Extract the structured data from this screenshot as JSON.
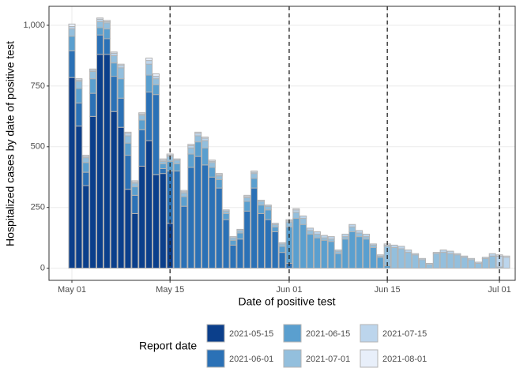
{
  "chart_data": {
    "type": "stacked-bar",
    "xlabel": "Date of positive test",
    "ylabel": "Hospitalized cases by date of positive test",
    "categories": [
      "May 01",
      "May 02",
      "May 03",
      "May 04",
      "May 05",
      "May 06",
      "May 07",
      "May 08",
      "May 09",
      "May 10",
      "May 11",
      "May 12",
      "May 13",
      "May 14",
      "May 15",
      "May 16",
      "May 17",
      "May 18",
      "May 19",
      "May 20",
      "May 21",
      "May 22",
      "May 23",
      "May 24",
      "May 25",
      "May 26",
      "May 27",
      "May 28",
      "May 29",
      "May 30",
      "May 31",
      "Jun 01",
      "Jun 02",
      "Jun 03",
      "Jun 04",
      "Jun 05",
      "Jun 06",
      "Jun 07",
      "Jun 08",
      "Jun 09",
      "Jun 10",
      "Jun 11",
      "Jun 12",
      "Jun 13",
      "Jun 14",
      "Jun 15",
      "Jun 16",
      "Jun 17",
      "Jun 18",
      "Jun 19",
      "Jun 20",
      "Jun 21",
      "Jun 22",
      "Jun 23",
      "Jun 24",
      "Jun 25",
      "Jun 26",
      "Jun 27",
      "Jun 28",
      "Jun 29",
      "Jun 30",
      "Jul 01",
      "Jul 02"
    ],
    "xticks": [
      0,
      14,
      31,
      45,
      61
    ],
    "vlines": [
      14,
      31,
      45,
      61
    ],
    "ylim": [
      -50,
      1078
    ],
    "yticks": [
      0,
      250,
      500,
      750,
      {
        "value": 1000,
        "label": "1,000"
      }
    ],
    "grid": true,
    "legend_title": "Report date",
    "legend": "bottom",
    "series": [
      {
        "name": "2021-05-15",
        "color": "#0b3f8b",
        "values": [
          785,
          585,
          340,
          625,
          880,
          880,
          645,
          580,
          325,
          225,
          420,
          525,
          385,
          390,
          185,
          null,
          null,
          null,
          null,
          null,
          null,
          null,
          null,
          null,
          null,
          null,
          null,
          null,
          null,
          null,
          null,
          null,
          null,
          null,
          null,
          null,
          null,
          null,
          null,
          null,
          null,
          null,
          null,
          null,
          null,
          null,
          null,
          null,
          null,
          null,
          null,
          null,
          null,
          null,
          null,
          null,
          null,
          null,
          null,
          null,
          null,
          null,
          null
        ]
      },
      {
        "name": "2021-06-01",
        "color": "#2b71b6",
        "values": [
          110,
          95,
          55,
          95,
          80,
          65,
          145,
          120,
          140,
          75,
          150,
          200,
          330,
          20,
          215,
          400,
          255,
          415,
          460,
          425,
          375,
          330,
          200,
          95,
          120,
          235,
          330,
          225,
          200,
          150,
          65,
          20,
          null,
          null,
          null,
          null,
          null,
          null,
          null,
          null,
          null,
          null,
          null,
          null,
          null,
          null,
          null,
          null,
          null,
          null,
          null,
          null,
          null,
          null,
          null,
          null,
          null,
          null,
          null,
          null,
          null,
          null,
          null
        ]
      },
      {
        "name": "2021-06-15",
        "color": "#5a9fcf",
        "values": [
          60,
          60,
          40,
          60,
          30,
          40,
          55,
          80,
          50,
          35,
          40,
          70,
          40,
          20,
          40,
          30,
          40,
          55,
          60,
          70,
          40,
          35,
          25,
          20,
          25,
          40,
          40,
          35,
          40,
          20,
          25,
          150,
          205,
          180,
          140,
          125,
          115,
          110,
          60,
          120,
          150,
          130,
          120,
          85,
          45,
          10,
          null,
          null,
          null,
          null,
          null,
          null,
          null,
          null,
          null,
          null,
          null,
          null,
          null,
          null,
          null,
          null,
          null
        ]
      },
      {
        "name": "2021-07-01",
        "color": "#93bfdd",
        "values": [
          30,
          30,
          20,
          30,
          25,
          25,
          30,
          45,
          30,
          15,
          20,
          45,
          25,
          10,
          20,
          15,
          15,
          25,
          25,
          30,
          20,
          15,
          10,
          10,
          10,
          15,
          20,
          15,
          15,
          10,
          10,
          20,
          25,
          25,
          15,
          15,
          10,
          10,
          10,
          10,
          20,
          15,
          10,
          10,
          5,
          80,
          85,
          80,
          65,
          55,
          35,
          15,
          60,
          65,
          60,
          55,
          45,
          35,
          20,
          40,
          50,
          5,
          null
        ]
      },
      {
        "name": "2021-07-15",
        "color": "#bcd5ec",
        "values": [
          10,
          5,
          5,
          5,
          10,
          5,
          10,
          10,
          10,
          5,
          5,
          15,
          10,
          5,
          5,
          5,
          5,
          10,
          10,
          10,
          5,
          5,
          5,
          5,
          5,
          5,
          5,
          5,
          5,
          5,
          5,
          5,
          10,
          10,
          10,
          10,
          10,
          10,
          5,
          10,
          10,
          10,
          10,
          5,
          5,
          5,
          10,
          10,
          10,
          5,
          5,
          5,
          5,
          10,
          10,
          5,
          5,
          5,
          5,
          5,
          10,
          45,
          45
        ]
      },
      {
        "name": "2021-08-01",
        "color": "#e8effa",
        "values": [
          10,
          5,
          5,
          5,
          5,
          5,
          5,
          5,
          5,
          5,
          5,
          10,
          10,
          5,
          5,
          0,
          5,
          5,
          5,
          5,
          5,
          5,
          0,
          0,
          0,
          5,
          5,
          0,
          0,
          0,
          0,
          5,
          5,
          0,
          0,
          0,
          0,
          0,
          0,
          0,
          0,
          0,
          0,
          0,
          0,
          5,
          0,
          0,
          0,
          0,
          0,
          0,
          0,
          0,
          0,
          0,
          0,
          0,
          0,
          0,
          0,
          5,
          5
        ]
      }
    ]
  }
}
